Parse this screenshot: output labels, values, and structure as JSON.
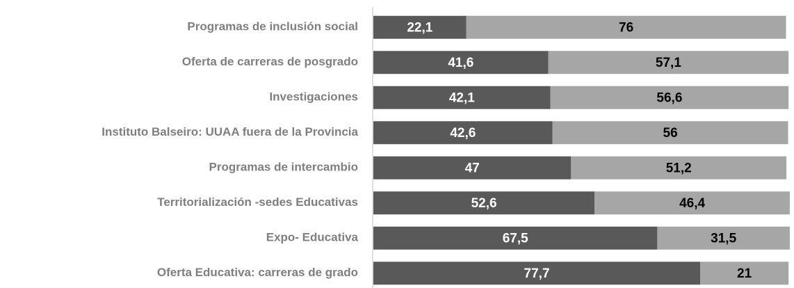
{
  "chart_data": {
    "type": "stacked-bar-horizontal",
    "categories": [
      "Programas de inclusión social",
      "Oferta de carreras de posgrado",
      "Investigaciones",
      "Instituto Balseiro: UUAA fuera de la Provincia",
      "Programas de intercambio",
      "Territorialización -sedes Educativas",
      "Expo- Educativa",
      "Oferta Educativa: carreras de grado"
    ],
    "series": [
      {
        "color": "#595959",
        "label_color": "#ffffff",
        "values": [
          22.1,
          41.6,
          42.1,
          42.6,
          47,
          52.6,
          67.5,
          77.7
        ],
        "value_labels": [
          "22,1",
          "41,6",
          "42,1",
          "42,6",
          "47",
          "52,6",
          "67,5",
          "77,7"
        ]
      },
      {
        "color": "#a6a6a6",
        "label_color": "#000000",
        "values": [
          76,
          57.1,
          56.6,
          56,
          51.2,
          46.4,
          31.5,
          21
        ],
        "value_labels": [
          "76",
          "57,1",
          "56,6",
          "56",
          "51,2",
          "46,4",
          "31,5",
          "21"
        ]
      }
    ],
    "xlim": [
      0,
      100
    ]
  }
}
